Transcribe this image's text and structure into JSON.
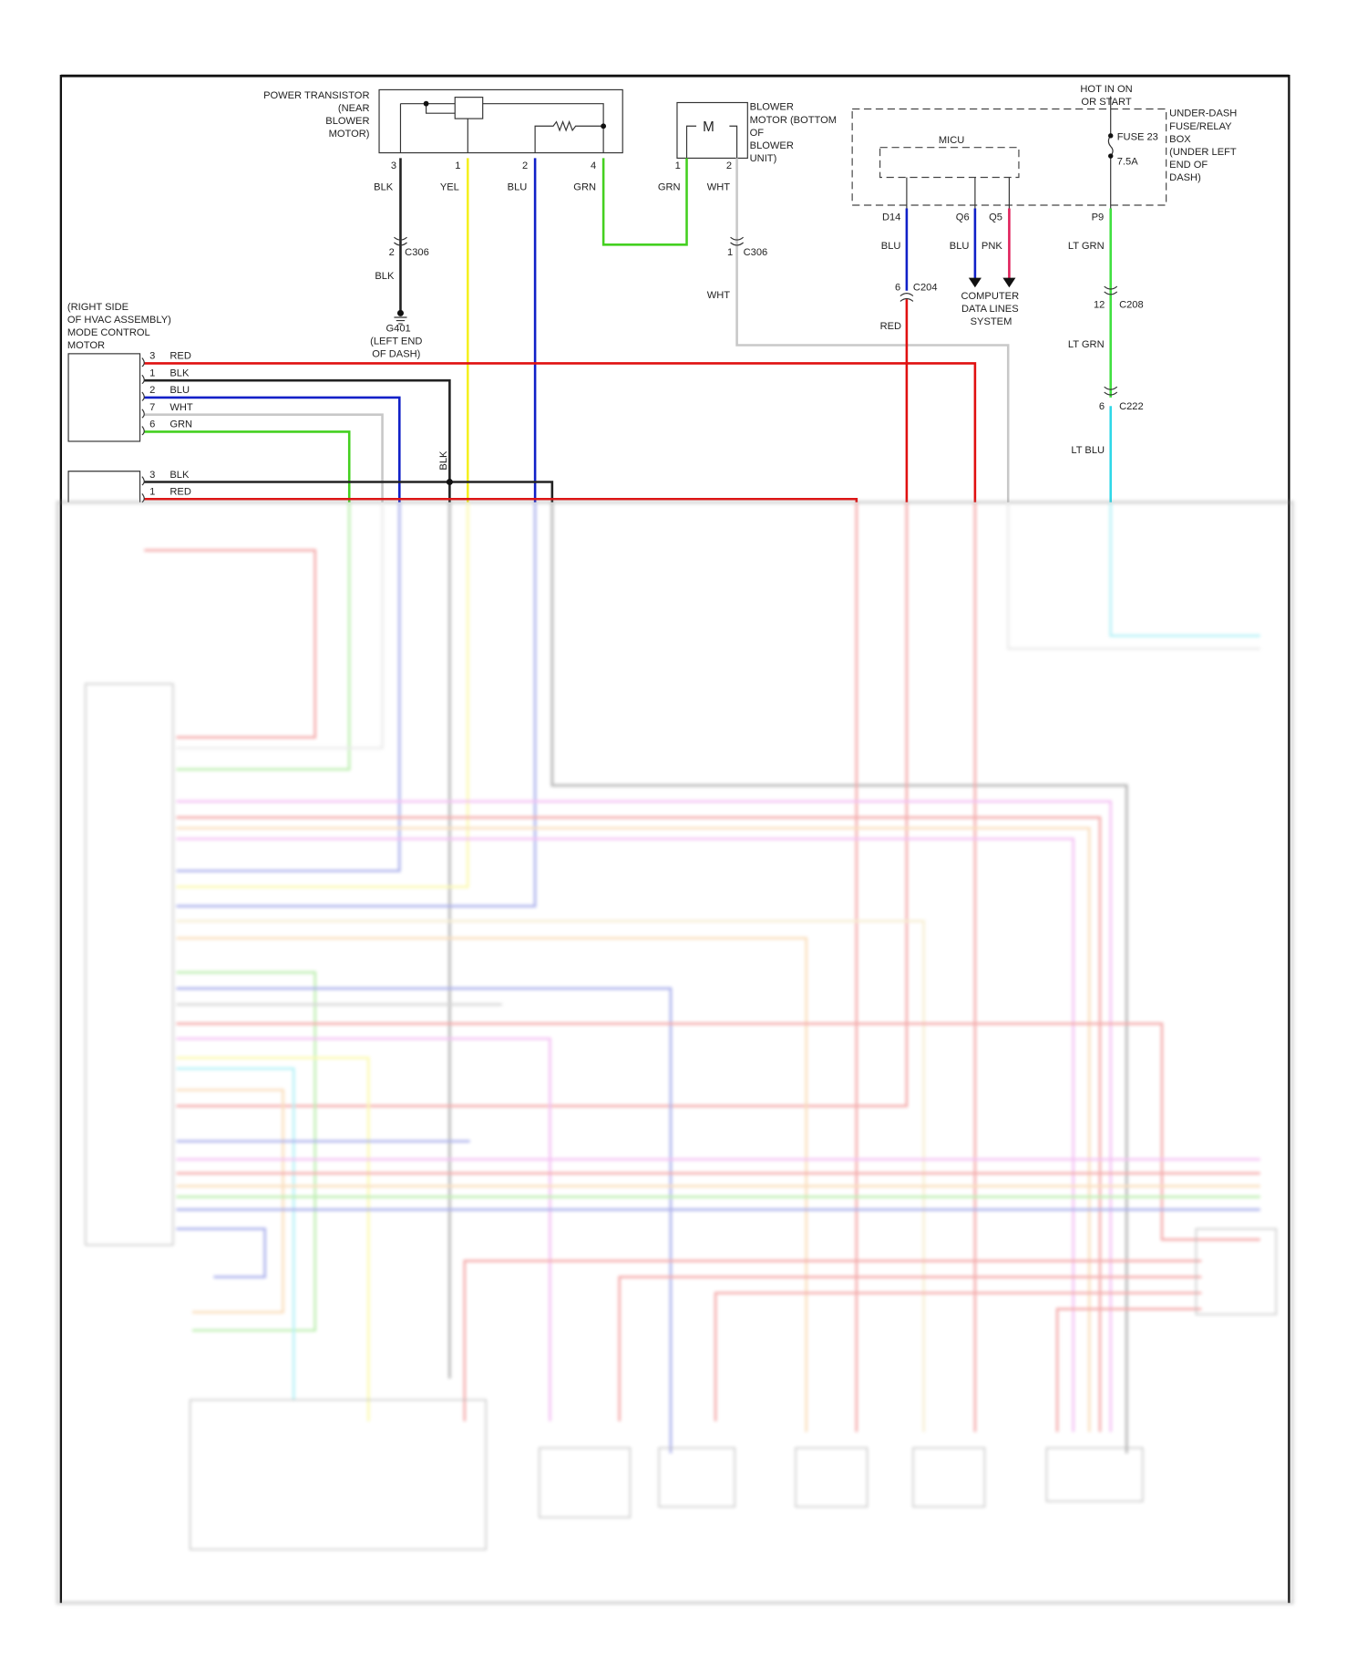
{
  "colors": {
    "RED": "#e01010",
    "BLK": "#222222",
    "BLU": "#1020c8",
    "WHT": "#c8c8c8",
    "GRN": "#44d020",
    "YEL": "#f5f020",
    "PNK": "#e0205a",
    "LT_GRN": "#40e040",
    "LT_BLU": "#30d8e8",
    "ORN": "#f0a040",
    "MAG": "#e050e0"
  },
  "power_transistor": {
    "label": [
      "POWER TRANSISTOR",
      "(NEAR",
      "BLOWER",
      "MOTOR)"
    ],
    "pins": [
      {
        "pin": "3",
        "wire": "BLK"
      },
      {
        "pin": "1",
        "wire": "YEL"
      },
      {
        "pin": "2",
        "wire": "BLU"
      },
      {
        "pin": "4",
        "wire": "GRN"
      }
    ]
  },
  "blower_motor": {
    "label": [
      "BLOWER",
      "MOTOR (BOTTOM",
      "OF",
      "BLOWER",
      "UNIT)"
    ],
    "symbol": "M",
    "pins": [
      {
        "pin": "1",
        "wire": "GRN"
      },
      {
        "pin": "2",
        "wire": "WHT"
      }
    ]
  },
  "c306_blk": {
    "pin": "2",
    "name": "C306",
    "wire": "BLK"
  },
  "c306_wht": {
    "pin": "1",
    "name": "C306",
    "wire": "WHT"
  },
  "ground": {
    "name": "G401",
    "location": [
      "(LEFT END",
      "OF DASH)"
    ]
  },
  "fuse_box": {
    "hot": [
      "HOT IN ON",
      "OR START"
    ],
    "label": [
      "UNDER-DASH",
      "FUSE/RELAY",
      "BOX",
      "(UNDER LEFT",
      "END OF",
      "DASH)"
    ],
    "micu": "MICU",
    "fuse": "FUSE 23",
    "rating": "7.5A",
    "pins": [
      {
        "pin": "D14",
        "wire": "BLU"
      },
      {
        "pin": "Q6",
        "wire": "BLU"
      },
      {
        "pin": "Q5",
        "wire": "PNK"
      },
      {
        "pin": "P9",
        "wire": "LT GRN"
      }
    ]
  },
  "c204": {
    "pin": "6",
    "name": "C204",
    "wire_after": "RED"
  },
  "computer_data_lines": [
    "COMPUTER",
    "DATA LINES",
    "SYSTEM"
  ],
  "c208": {
    "pin": "12",
    "name": "C208",
    "wire_after": "LT GRN"
  },
  "c222": {
    "pin": "6",
    "name": "C222",
    "wire_after": "LT BLU"
  },
  "mode_motor": {
    "label": [
      "(RIGHT SIDE",
      "OF HVAC ASSEMBLY)",
      "MODE CONTROL",
      "MOTOR"
    ],
    "pins": [
      {
        "pin": "3",
        "wire": "RED"
      },
      {
        "pin": "1",
        "wire": "BLK"
      },
      {
        "pin": "2",
        "wire": "BLU"
      },
      {
        "pin": "7",
        "wire": "WHT"
      },
      {
        "pin": "6",
        "wire": "GRN"
      }
    ]
  },
  "second_motor": {
    "pins": [
      {
        "pin": "3",
        "wire": "BLK"
      },
      {
        "pin": "1",
        "wire": "RED"
      }
    ]
  },
  "splice_wire": "BLK"
}
